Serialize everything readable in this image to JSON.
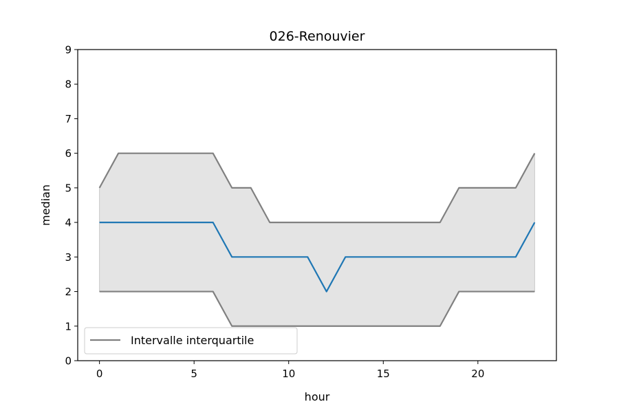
{
  "chart_data": {
    "type": "line",
    "title": "026-Renouvier",
    "xlabel": "hour",
    "ylabel": "median",
    "xlim": [
      -1.15,
      24.15
    ],
    "ylim": [
      0,
      9
    ],
    "xticks": [
      0,
      5,
      10,
      15,
      20
    ],
    "yticks": [
      0,
      1,
      2,
      3,
      4,
      5,
      6,
      7,
      8,
      9
    ],
    "grid": false,
    "legend": {
      "location": "lower-left",
      "entries": [
        "Intervalle interquartile"
      ]
    },
    "x": [
      0,
      1,
      2,
      3,
      4,
      5,
      6,
      7,
      8,
      9,
      10,
      11,
      12,
      13,
      14,
      15,
      16,
      17,
      18,
      19,
      20,
      21,
      22,
      23
    ],
    "series": [
      {
        "role": "median",
        "color": "#1f77b4",
        "values": [
          4,
          4,
          4,
          4,
          4,
          4,
          4,
          3,
          3,
          3,
          3,
          3,
          2,
          3,
          3,
          3,
          3,
          3,
          3,
          3,
          3,
          3,
          3,
          4
        ]
      },
      {
        "role": "q75",
        "name": "Intervalle interquartile",
        "color": "#808080",
        "values": [
          5,
          6,
          6,
          6,
          6,
          6,
          6,
          5,
          5,
          4,
          4,
          4,
          4,
          4,
          4,
          4,
          4,
          4,
          4,
          5,
          5,
          5,
          5,
          6
        ]
      },
      {
        "role": "q25",
        "color": "#808080",
        "values": [
          2,
          2,
          2,
          2,
          2,
          2,
          2,
          1,
          1,
          1,
          1,
          1,
          1,
          1,
          1,
          1,
          1,
          1,
          1,
          2,
          2,
          2,
          2,
          2
        ]
      }
    ],
    "band_fill": "#e4e4e4"
  }
}
